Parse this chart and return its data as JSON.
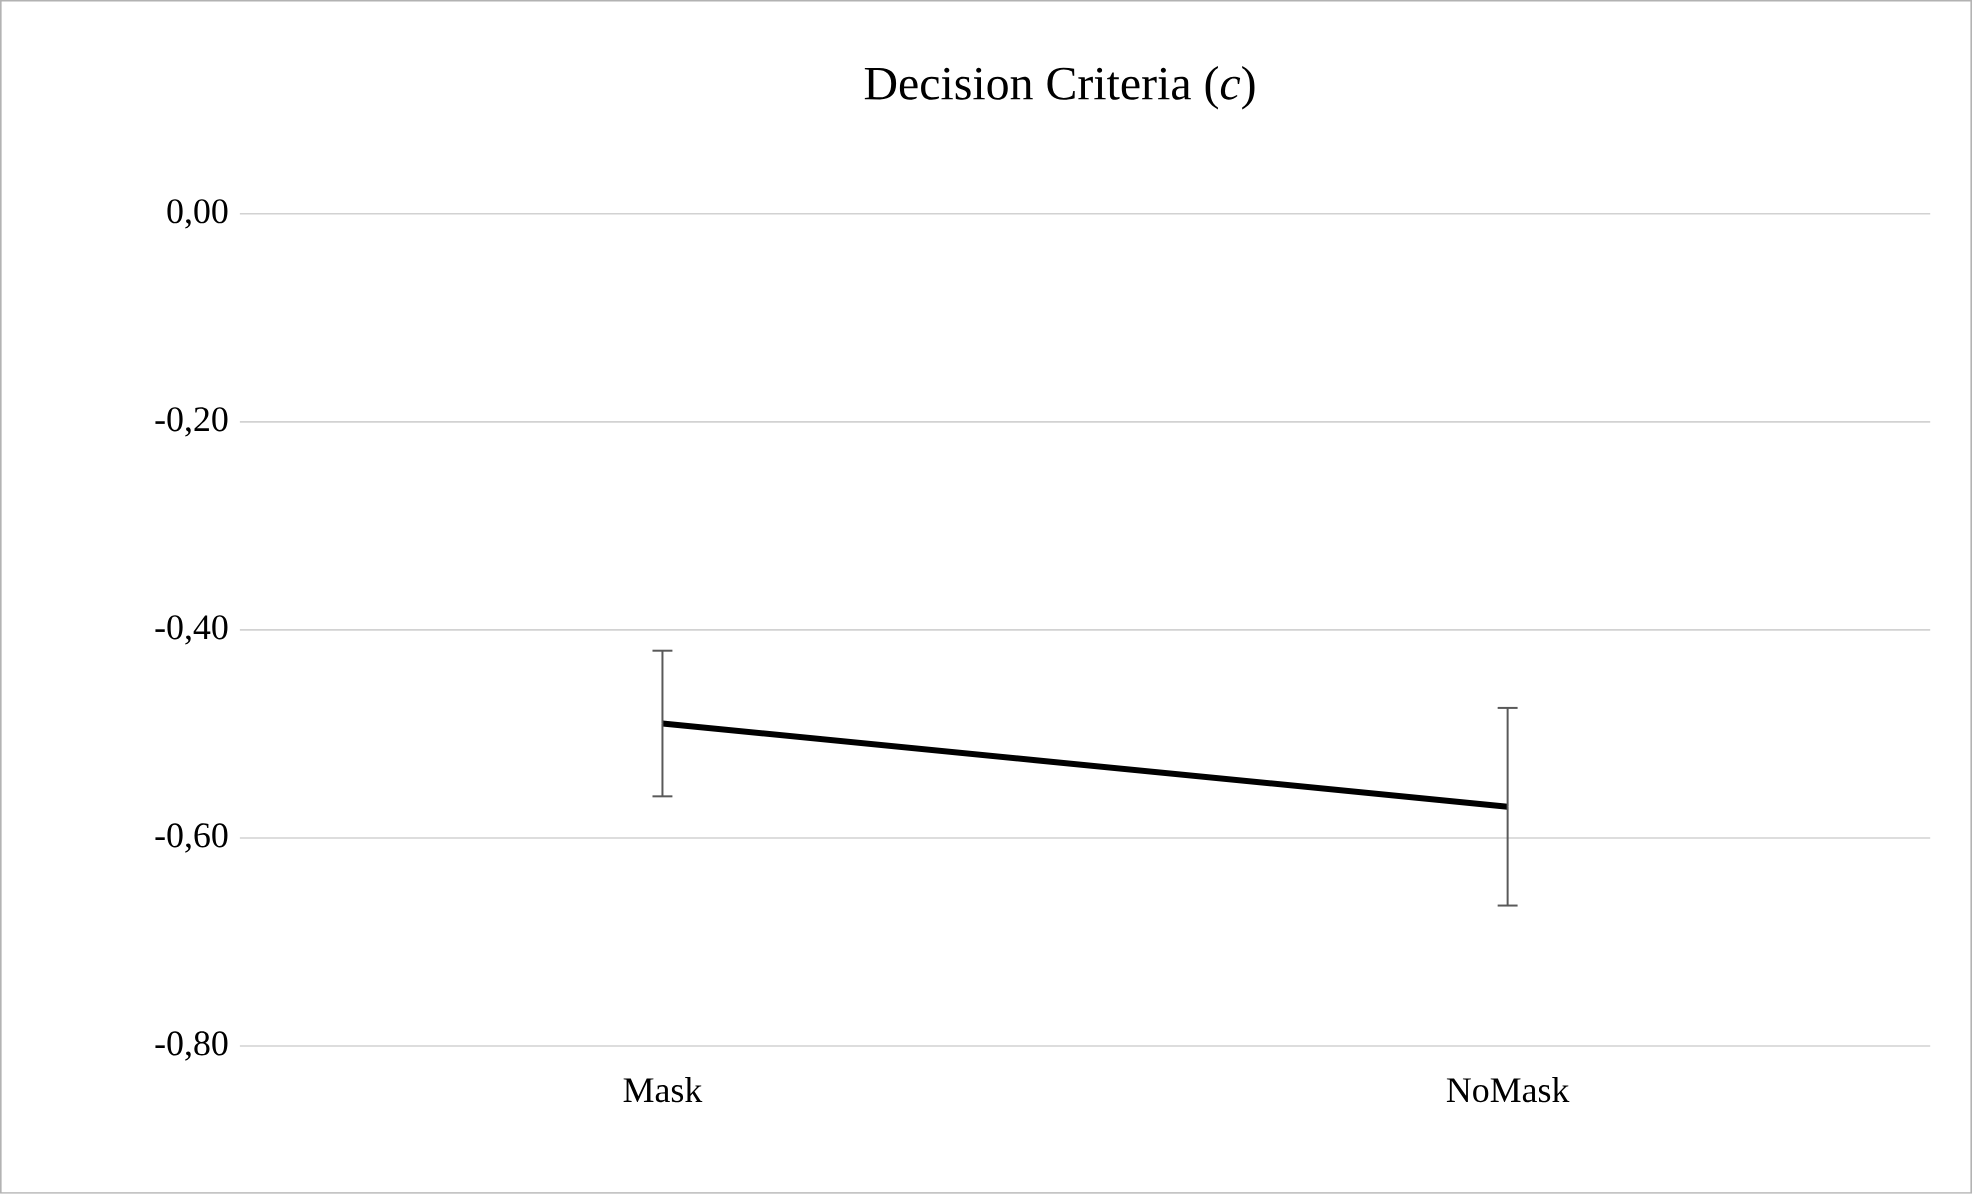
{
  "chart_data": {
    "type": "line",
    "title": "Decision Criteria (*c*)",
    "categories": [
      "Mask",
      "NoMask"
    ],
    "series": [
      {
        "color": "#000000",
        "values": [
          -0.49,
          -0.57
        ],
        "errors": [
          0.07,
          0.095
        ]
      }
    ],
    "ylim": [
      -0.8,
      0
    ],
    "yticks": [
      {
        "value": -0.8,
        "label": "-0,80"
      },
      {
        "value": -0.6,
        "label": "-0,60"
      },
      {
        "value": -0.4,
        "label": "-0,40"
      },
      {
        "value": -0.2,
        "label": "-0,20"
      },
      {
        "value": 0,
        "label": "0,00"
      }
    ],
    "grid": "y",
    "marker": "none",
    "line_style": "solid"
  }
}
